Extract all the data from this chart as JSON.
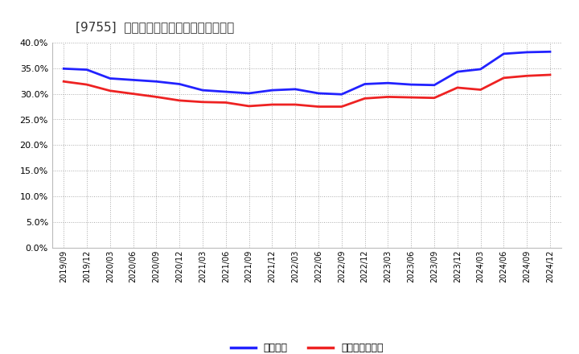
{
  "title": "[9755]  固定比率、固定長期適合率の推移",
  "x_labels": [
    "2019/09",
    "2019/12",
    "2020/03",
    "2020/06",
    "2020/09",
    "2020/12",
    "2021/03",
    "2021/06",
    "2021/09",
    "2021/12",
    "2022/03",
    "2022/06",
    "2022/09",
    "2022/12",
    "2023/03",
    "2023/06",
    "2023/09",
    "2023/12",
    "2024/03",
    "2024/06",
    "2024/09",
    "2024/12"
  ],
  "fixed_ratio": [
    34.9,
    34.7,
    33.0,
    32.7,
    32.4,
    31.9,
    30.7,
    30.4,
    30.1,
    30.7,
    30.9,
    30.1,
    29.9,
    31.9,
    32.1,
    31.8,
    31.7,
    34.3,
    34.8,
    37.8,
    38.1,
    38.2
  ],
  "fixed_longterm_ratio": [
    32.4,
    31.8,
    30.6,
    30.0,
    29.4,
    28.7,
    28.4,
    28.3,
    27.6,
    27.9,
    27.9,
    27.5,
    27.5,
    29.1,
    29.4,
    29.3,
    29.2,
    31.2,
    30.8,
    33.1,
    33.5,
    33.7
  ],
  "blue_color": "#2222FF",
  "red_color": "#EE2222",
  "background_color": "#FFFFFF",
  "grid_color": "#AAAAAA",
  "ylim": [
    0,
    40
  ],
  "yticks": [
    0.0,
    5.0,
    10.0,
    15.0,
    20.0,
    25.0,
    30.0,
    35.0,
    40.0
  ],
  "legend_blue": "固定比率",
  "legend_red": "固定長期適合率"
}
